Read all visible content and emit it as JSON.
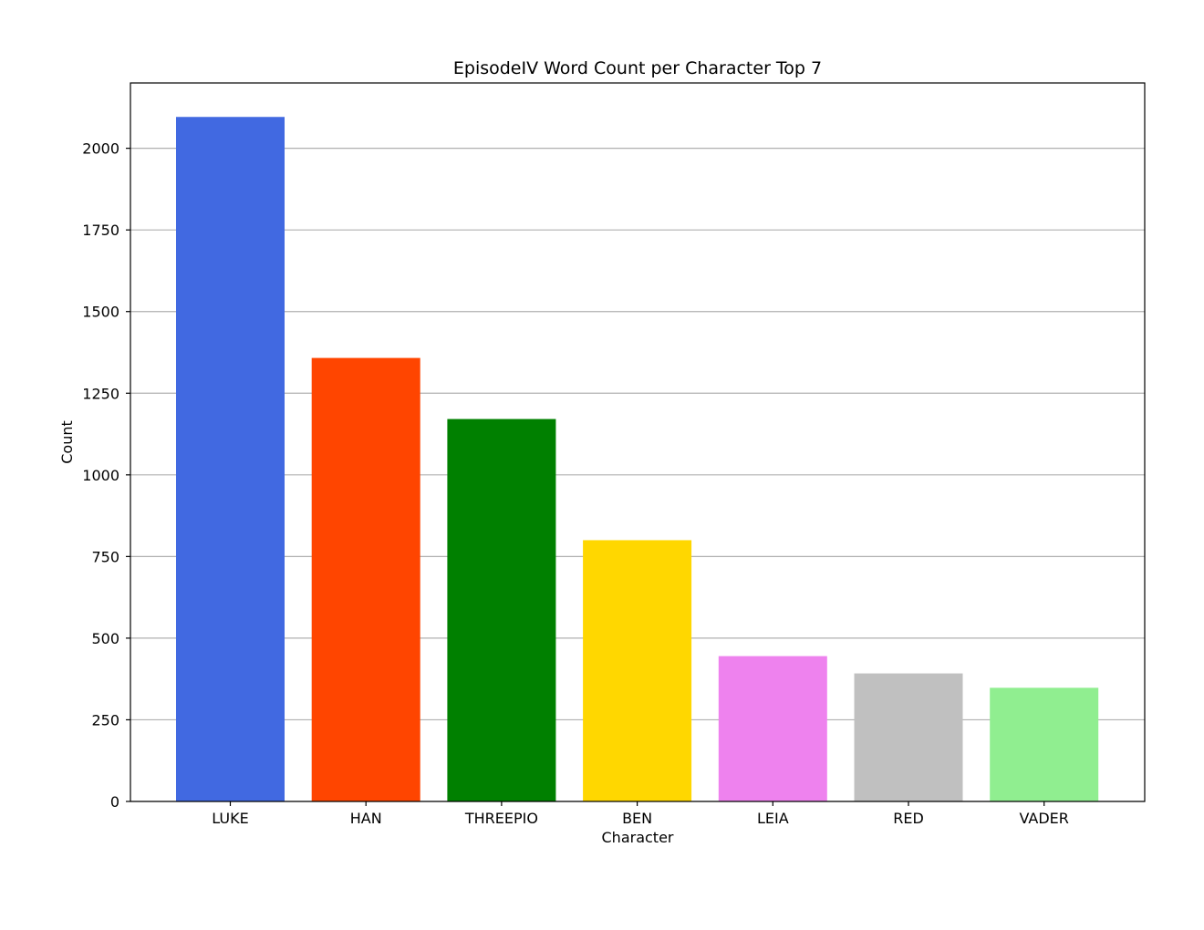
{
  "chart_data": {
    "type": "bar",
    "title": "EpisodeIV Word Count per Character Top 7",
    "xlabel": "Character",
    "ylabel": "Count",
    "categories": [
      "LUKE",
      "HAN",
      "THREEPIO",
      "BEN",
      "LEIA",
      "RED",
      "VADER"
    ],
    "values": [
      2096,
      1358,
      1171,
      800,
      445,
      392,
      348
    ],
    "colors": [
      "#4169e1",
      "#ff4500",
      "#008000",
      "#ffd700",
      "#ee82ee",
      "#c0c0c0",
      "#90ee90"
    ],
    "ylim": [
      0,
      2200
    ],
    "yticks": [
      0,
      250,
      500,
      750,
      1000,
      1250,
      1500,
      1750,
      2000
    ],
    "ytick_labels": [
      "0",
      "250",
      "500",
      "750",
      "1000",
      "1250",
      "1500",
      "1750",
      "2000"
    ],
    "grid": "horizontal",
    "grid_color": "#b0b0b0"
  }
}
